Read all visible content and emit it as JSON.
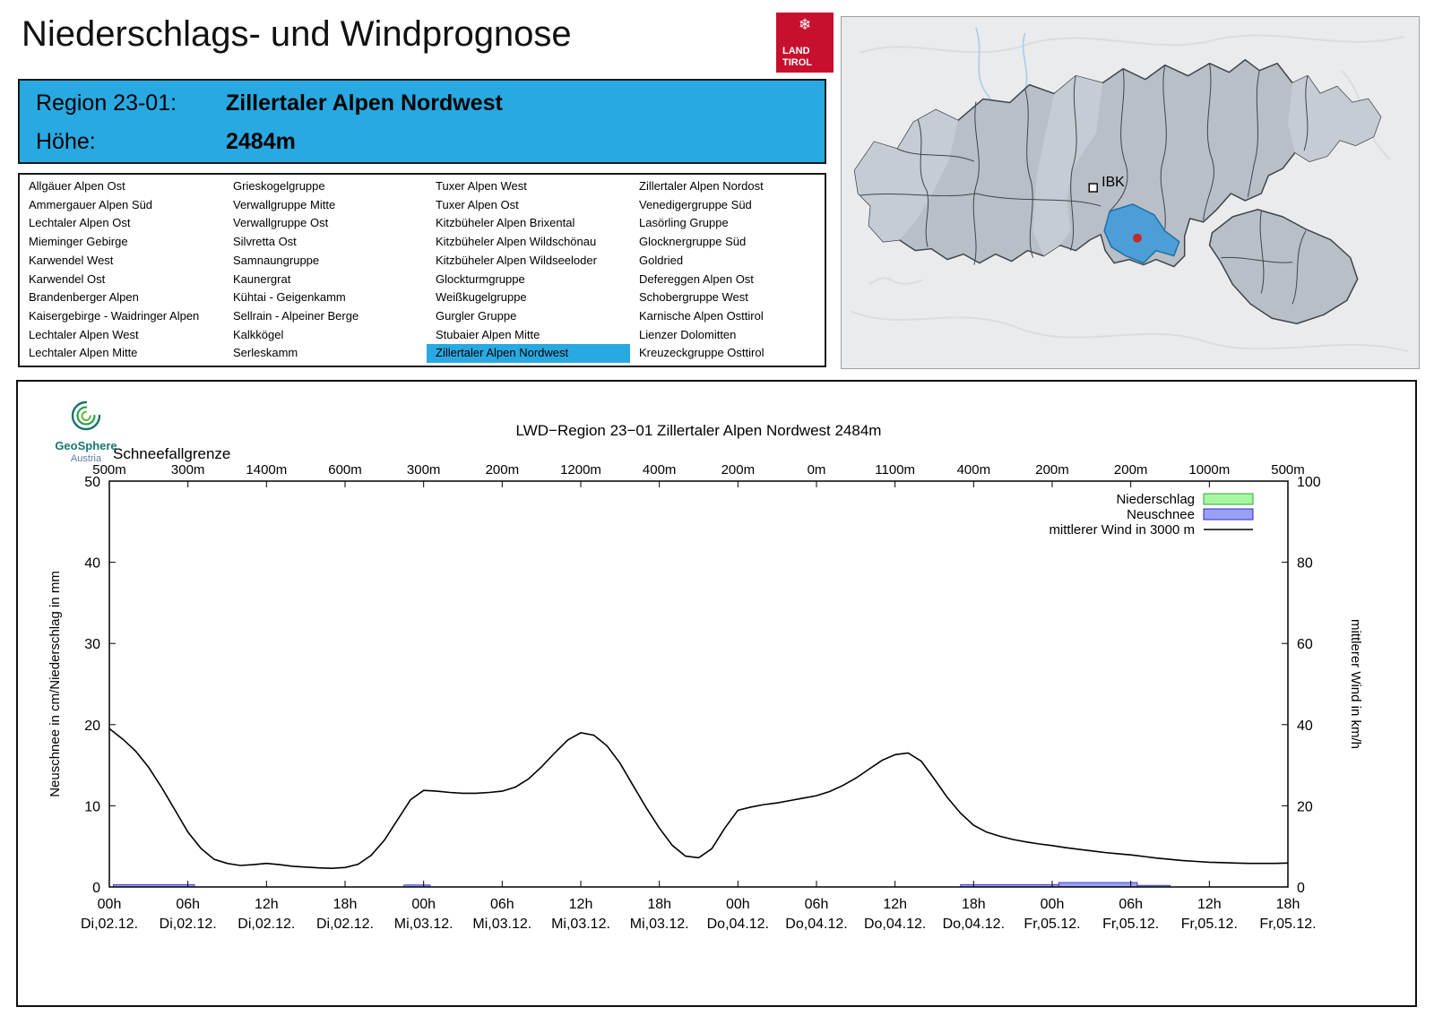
{
  "page": {
    "title": "Niederschlags- und Windprognose"
  },
  "theme": {
    "accent_blue": "#29a9e1",
    "logo_red": "#c8102e",
    "map_highlight": "#4c9fd6"
  },
  "logo": {
    "line1": "LAND",
    "line2": "TIROL",
    "icon": "snowflake-icon"
  },
  "region_box": {
    "region_label": "Region 23-01:",
    "region_value": "Zillertaler Alpen Nordwest",
    "altitude_label": "Höhe:",
    "altitude_value": "2484m"
  },
  "region_table": {
    "highlight": "Zillertaler Alpen Nordwest",
    "columns": [
      [
        "Allgäuer Alpen Ost",
        "Ammergauer Alpen Süd",
        "Lechtaler Alpen Ost",
        "Mieminger Gebirge",
        "Karwendel West",
        "Karwendel Ost",
        "Brandenberger Alpen",
        "Kaisergebirge - Waidringer Alpen",
        "Lechtaler Alpen West",
        "Lechtaler Alpen Mitte"
      ],
      [
        "Grieskogelgruppe",
        "Verwallgruppe Mitte",
        "Verwallgruppe Ost",
        "Silvretta Ost",
        "Samnaungruppe",
        "Kaunergrat",
        "Kühtai - Geigenkamm",
        "Sellrain - Alpeiner Berge",
        "Kalkkögel",
        "Serleskamm"
      ],
      [
        "Tuxer Alpen West",
        "Tuxer Alpen Ost",
        "Kitzbüheler Alpen Brixental",
        "Kitzbüheler Alpen Wildschönau",
        "Kitzbüheler Alpen Wildseeloder",
        "Glockturmgruppe",
        "Weißkugelgruppe",
        "Gurgler Gruppe",
        "Stubaier Alpen Mitte",
        "Zillertaler Alpen Nordwest"
      ],
      [
        "Zillertaler Alpen Nordost",
        "Venedigergruppe Süd",
        "Lasörling Gruppe",
        "Glocknergruppe Süd",
        "Goldried",
        "Defereggen Alpen Ost",
        "Schobergruppe West",
        "Karnische Alpen Osttirol",
        "Lienzer Dolomitten",
        "Kreuzeckgruppe Osttirol"
      ]
    ]
  },
  "map": {
    "city_label": "IBK"
  },
  "geosphere": {
    "name": "GeoSphere",
    "sub": "Austria"
  },
  "chart_data": {
    "type": "line",
    "title": "LWD−Region 23−01 Zillertaler Alpen Nordwest 2484m",
    "snowline_label": "Schneefallgrenze",
    "snowline_values": [
      "500m",
      "300m",
      "1400m",
      "600m",
      "300m",
      "200m",
      "1200m",
      "400m",
      "200m",
      "0m",
      "1100m",
      "400m",
      "200m",
      "200m",
      "1000m",
      "500m"
    ],
    "x_ticks_hours": [
      0,
      6,
      12,
      18,
      24,
      30,
      36,
      42,
      48,
      54,
      60,
      66,
      72,
      78,
      84,
      90
    ],
    "x_tick_time": [
      "00h",
      "06h",
      "12h",
      "18h",
      "00h",
      "06h",
      "12h",
      "18h",
      "00h",
      "06h",
      "12h",
      "18h",
      "00h",
      "06h",
      "12h",
      "18h"
    ],
    "x_tick_date": [
      "Di,02.12.",
      "Di,02.12.",
      "Di,02.12.",
      "Di,02.12.",
      "Mi,03.12.",
      "Mi,03.12.",
      "Mi,03.12.",
      "Mi,03.12.",
      "Do,04.12.",
      "Do,04.12.",
      "Do,04.12.",
      "Do,04.12.",
      "Fr,05.12.",
      "Fr,05.12.",
      "Fr,05.12.",
      "Fr,05.12."
    ],
    "ylabel_left": "Neuschnee in cm/Niederschlag in mm",
    "ylabel_right": "mittlerer Wind in km/h",
    "ylim_left": [
      0,
      50
    ],
    "ylim_right": [
      0,
      100
    ],
    "yticks_left": [
      0,
      10,
      20,
      30,
      40,
      50
    ],
    "yticks_right": [
      0,
      20,
      40,
      60,
      80,
      100
    ],
    "grid": false,
    "legend_position": "top-right-inside",
    "legend": [
      {
        "label": "Niederschlag",
        "type": "box",
        "fill": "#a7f7a0",
        "stroke": "#36a436"
      },
      {
        "label": "Neuschnee",
        "type": "box",
        "fill": "#9ba0f5",
        "stroke": "#2a2ac8"
      },
      {
        "label": "mittlerer Wind in 3000 m",
        "type": "line",
        "stroke": "#000000"
      }
    ],
    "wind_series": {
      "name": "mittlerer Wind in 3000 m",
      "unit": "km/h",
      "points": [
        [
          0,
          39
        ],
        [
          1,
          36.5
        ],
        [
          2,
          33.5
        ],
        [
          3,
          29.5
        ],
        [
          4,
          24.5
        ],
        [
          5,
          19
        ],
        [
          6,
          13.5
        ],
        [
          7,
          9.5
        ],
        [
          8,
          6.8
        ],
        [
          9,
          5.8
        ],
        [
          10,
          5.3
        ],
        [
          11,
          5.5
        ],
        [
          12,
          5.8
        ],
        [
          13,
          5.5
        ],
        [
          14,
          5.1
        ],
        [
          15,
          4.9
        ],
        [
          16,
          4.7
        ],
        [
          17,
          4.6
        ],
        [
          18,
          4.8
        ],
        [
          19,
          5.6
        ],
        [
          20,
          7.8
        ],
        [
          21,
          11.5
        ],
        [
          22,
          16.5
        ],
        [
          23,
          21.5
        ],
        [
          24,
          23.8
        ],
        [
          25,
          23.6
        ],
        [
          26,
          23.3
        ],
        [
          27,
          23.1
        ],
        [
          28,
          23.1
        ],
        [
          29,
          23.3
        ],
        [
          30,
          23.6
        ],
        [
          31,
          24.6
        ],
        [
          32,
          26.6
        ],
        [
          33,
          29.6
        ],
        [
          34,
          33
        ],
        [
          35,
          36.2
        ],
        [
          36,
          38
        ],
        [
          37,
          37.4
        ],
        [
          38,
          34.8
        ],
        [
          39,
          30.5
        ],
        [
          40,
          25
        ],
        [
          41,
          19.5
        ],
        [
          42,
          14.5
        ],
        [
          43,
          10.2
        ],
        [
          44,
          7.6
        ],
        [
          45,
          7.2
        ],
        [
          46,
          9.4
        ],
        [
          47,
          14.5
        ],
        [
          48,
          18.9
        ],
        [
          49,
          19.7
        ],
        [
          50,
          20.3
        ],
        [
          51,
          20.7
        ],
        [
          52,
          21.3
        ],
        [
          53,
          21.9
        ],
        [
          54,
          22.5
        ],
        [
          55,
          23.5
        ],
        [
          56,
          25
        ],
        [
          57,
          26.8
        ],
        [
          58,
          29
        ],
        [
          59,
          31.2
        ],
        [
          60,
          32.6
        ],
        [
          61,
          33
        ],
        [
          62,
          31
        ],
        [
          63,
          26.6
        ],
        [
          64,
          22
        ],
        [
          65,
          18.2
        ],
        [
          66,
          15.2
        ],
        [
          67,
          13.5
        ],
        [
          68,
          12.5
        ],
        [
          69,
          11.7
        ],
        [
          70,
          11.1
        ],
        [
          71,
          10.6
        ],
        [
          72,
          10.2
        ],
        [
          73,
          9.7
        ],
        [
          74,
          9.3
        ],
        [
          75,
          8.9
        ],
        [
          76,
          8.5
        ],
        [
          77,
          8.2
        ],
        [
          78,
          7.9
        ],
        [
          79,
          7.5
        ],
        [
          80,
          7.1
        ],
        [
          81,
          6.8
        ],
        [
          82,
          6.5
        ],
        [
          83,
          6.3
        ],
        [
          84,
          6.1
        ],
        [
          85,
          6
        ],
        [
          86,
          5.9
        ],
        [
          87,
          5.8
        ],
        [
          88,
          5.8
        ],
        [
          89,
          5.8
        ],
        [
          90,
          5.9
        ]
      ]
    },
    "neuschnee_bars": {
      "unit": "cm",
      "segments": [
        {
          "from": 0.3,
          "to": 6.5,
          "value": 0.3
        },
        {
          "from": 22.5,
          "to": 24.5,
          "value": 0.25
        },
        {
          "from": 65,
          "to": 72.5,
          "value": 0.3
        },
        {
          "from": 72.5,
          "to": 78.5,
          "value": 0.55
        },
        {
          "from": 78.5,
          "to": 81,
          "value": 0.2
        }
      ]
    },
    "niederschlag_bars": {
      "unit": "mm",
      "segments": []
    }
  }
}
